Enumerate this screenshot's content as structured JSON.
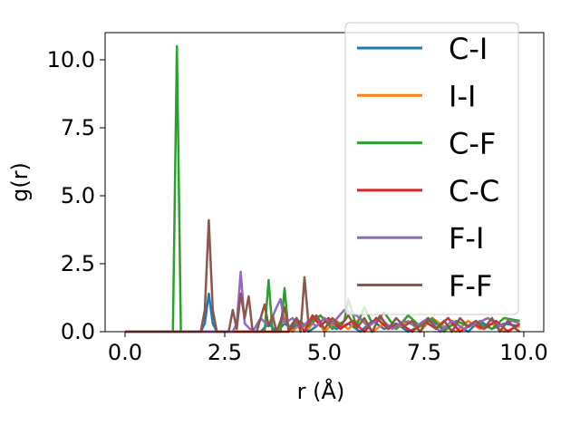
{
  "chart_data": {
    "type": "line",
    "xlabel": "r (Å)",
    "ylabel": "g(r)",
    "xlim": [
      -0.5,
      10.5
    ],
    "ylim": [
      0,
      11
    ],
    "xticks": [
      0.0,
      2.5,
      5.0,
      7.5,
      10.0
    ],
    "xtick_labels": [
      "0.0",
      "2.5",
      "5.0",
      "7.5",
      "10.0"
    ],
    "yticks": [
      0.0,
      2.5,
      5.0,
      7.5,
      10.0
    ],
    "ytick_labels": [
      "0.0",
      "2.5",
      "5.0",
      "7.5",
      "10.0"
    ],
    "grid": false,
    "legend_position": "upper-right",
    "series": [
      {
        "name": "C-I",
        "color": "#1f77b4",
        "x": [
          0.0,
          1.9,
          2.0,
          2.1,
          2.2,
          2.3,
          3.4,
          3.6,
          3.8,
          4.0,
          4.2,
          4.4,
          4.6,
          4.8,
          5.0,
          5.3,
          5.6,
          5.9,
          6.2,
          6.5,
          6.8,
          7.1,
          7.4,
          7.7,
          8.0,
          8.3,
          8.6,
          8.9,
          9.2,
          9.5,
          9.9
        ],
        "y": [
          0.0,
          0.0,
          0.3,
          1.4,
          0.3,
          0.0,
          0.0,
          0.3,
          0.0,
          0.3,
          0.1,
          0.4,
          0.0,
          0.2,
          0.5,
          0.1,
          0.3,
          0.0,
          0.4,
          0.1,
          0.3,
          0.0,
          0.2,
          0.4,
          0.1,
          0.3,
          0.0,
          0.4,
          0.1,
          0.3,
          0.2
        ]
      },
      {
        "name": "I-I",
        "color": "#ff7f0e",
        "x": [
          0.0,
          3.8,
          4.0,
          4.2,
          4.4,
          4.6,
          4.8,
          5.0,
          5.3,
          5.6,
          5.9,
          6.2,
          6.5,
          6.8,
          7.1,
          7.4,
          7.7,
          8.0,
          8.3,
          8.6,
          8.9,
          9.2,
          9.5,
          9.9
        ],
        "y": [
          0.0,
          0.0,
          0.5,
          0.0,
          0.3,
          0.1,
          0.5,
          0.0,
          0.4,
          0.1,
          0.5,
          0.0,
          0.3,
          0.1,
          0.4,
          0.0,
          0.5,
          0.2,
          0.0,
          0.4,
          0.1,
          0.3,
          0.0,
          0.2
        ]
      },
      {
        "name": "C-F",
        "color": "#2ca02c",
        "x": [
          0.0,
          1.2,
          1.3,
          1.4,
          3.5,
          3.6,
          3.7,
          3.9,
          4.0,
          4.1,
          4.3,
          4.6,
          4.9,
          5.2,
          5.5,
          5.6,
          5.8,
          6.0,
          6.2,
          6.5,
          6.8,
          7.1,
          7.4,
          7.7,
          8.0,
          8.3,
          8.6,
          8.9,
          9.2,
          9.5,
          9.9
        ],
        "y": [
          0.0,
          0.0,
          10.5,
          0.0,
          0.0,
          1.9,
          0.0,
          0.0,
          1.6,
          0.0,
          0.4,
          0.2,
          0.6,
          0.1,
          0.4,
          1.2,
          0.2,
          0.9,
          0.3,
          0.7,
          0.1,
          0.6,
          0.2,
          0.5,
          0.0,
          0.4,
          0.2,
          0.3,
          0.1,
          0.5,
          0.4
        ]
      },
      {
        "name": "C-C",
        "color": "#d62728",
        "x": [
          0.0,
          4.1,
          4.3,
          4.5,
          4.7,
          4.9,
          5.1,
          5.4,
          5.7,
          6.0,
          6.3,
          6.6,
          6.9,
          7.2,
          7.5,
          7.8,
          8.1,
          8.4,
          8.7,
          9.0,
          9.3,
          9.6,
          9.9
        ],
        "y": [
          0.0,
          0.0,
          0.5,
          0.0,
          0.6,
          0.2,
          0.5,
          0.1,
          0.4,
          0.0,
          0.5,
          0.1,
          0.3,
          0.0,
          0.4,
          0.1,
          0.5,
          0.0,
          0.3,
          0.1,
          0.4,
          0.0,
          0.3
        ]
      },
      {
        "name": "F-I",
        "color": "#9467bd",
        "x": [
          0.0,
          2.7,
          2.8,
          2.9,
          3.0,
          3.2,
          3.4,
          3.6,
          3.8,
          3.9,
          4.0,
          4.2,
          4.4,
          4.6,
          4.8,
          5.0,
          5.2,
          5.5,
          5.8,
          6.1,
          6.4,
          6.7,
          7.0,
          7.3,
          7.6,
          7.9,
          8.2,
          8.5,
          8.8,
          9.1,
          9.4,
          9.7,
          9.9
        ],
        "y": [
          0.0,
          0.0,
          0.3,
          2.2,
          0.3,
          0.0,
          0.5,
          0.2,
          0.9,
          1.2,
          0.3,
          0.5,
          0.1,
          0.4,
          0.2,
          0.5,
          0.3,
          0.8,
          0.6,
          0.2,
          0.5,
          0.1,
          0.4,
          0.2,
          0.5,
          0.0,
          0.4,
          0.1,
          0.3,
          0.5,
          0.2,
          0.4,
          0.3
        ]
      },
      {
        "name": "F-F",
        "color": "#8c564b",
        "x": [
          0.0,
          1.9,
          2.0,
          2.1,
          2.2,
          2.3,
          2.6,
          2.7,
          2.8,
          2.9,
          3.0,
          3.1,
          3.2,
          3.3,
          3.4,
          3.5,
          3.6,
          3.7,
          3.8,
          3.9,
          4.0,
          4.1,
          4.3,
          4.4,
          4.5,
          4.6,
          4.8,
          5.0,
          5.2,
          5.4,
          5.6,
          5.8,
          6.0,
          6.2,
          6.4,
          6.6,
          6.8,
          7.0,
          7.2,
          7.4,
          7.6,
          7.8,
          8.0,
          8.2,
          8.4,
          8.6,
          8.8,
          9.0,
          9.2,
          9.4,
          9.6,
          9.8,
          9.9
        ],
        "y": [
          0.0,
          0.0,
          0.8,
          4.1,
          0.8,
          0.0,
          0.0,
          0.8,
          0.1,
          1.4,
          0.5,
          1.3,
          0.0,
          0.0,
          0.5,
          1.0,
          0.2,
          0.6,
          0.0,
          0.4,
          0.9,
          0.1,
          0.5,
          0.0,
          2.0,
          0.3,
          0.6,
          0.1,
          0.5,
          0.2,
          0.6,
          0.1,
          0.5,
          0.0,
          0.6,
          0.1,
          0.5,
          0.2,
          0.4,
          0.0,
          0.5,
          0.1,
          0.4,
          0.0,
          0.5,
          0.2,
          0.4,
          0.1,
          0.5,
          0.0,
          0.4,
          0.1,
          0.0
        ]
      }
    ]
  }
}
